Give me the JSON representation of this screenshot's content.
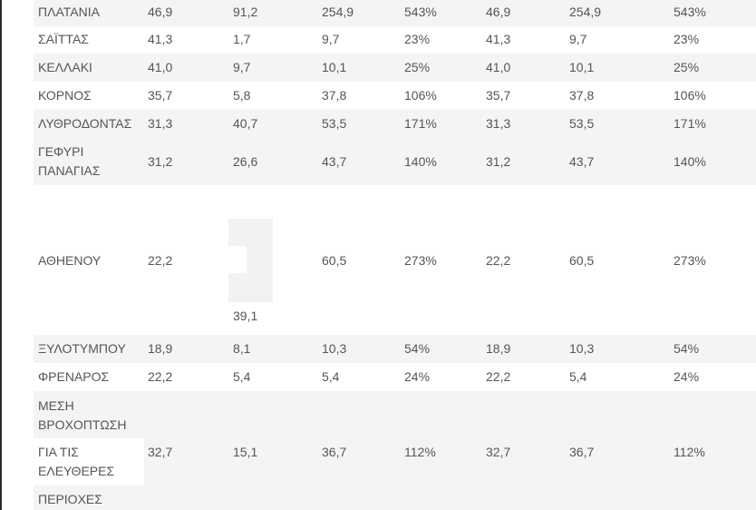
{
  "table": {
    "rows": [
      {
        "name": "ΠΛΑΤΑΝΙΑ",
        "v1": "46,9",
        "v2": "91,2",
        "v3": "254,9",
        "p1": "543%",
        "v4": "46,9",
        "v5": "254,9",
        "p2": "543%"
      },
      {
        "name": "ΣΑΪΤΤΑΣ",
        "v1": "41,3",
        "v2": "1,7",
        "v3": "9,7",
        "p1": "23%",
        "v4": "41,3",
        "v5": "9,7",
        "p2": "23%"
      },
      {
        "name": "ΚΕΛΛΑΚΙ",
        "v1": "41,0",
        "v2": "9,7",
        "v3": "10,1",
        "p1": "25%",
        "v4": "41,0",
        "v5": "10,1",
        "p2": "25%"
      },
      {
        "name": "ΚΟΡΝΟΣ",
        "v1": "35,7",
        "v2": "5,8",
        "v3": "37,8",
        "p1": "106%",
        "v4": "35,7",
        "v5": "37,8",
        "p2": "106%"
      },
      {
        "name": "ΛΥΘΡΟΔΟΝΤΑΣ",
        "v1": "31,3",
        "v2": "40,7",
        "v3": "53,5",
        "p1": "171%",
        "v4": "31,3",
        "v5": "53,5",
        "p2": "171%"
      },
      {
        "name_line1": "ΓΕΦΥΡΙ",
        "name_line2": "ΠΑΝΑΓΙΑΣ",
        "v1": "31,2",
        "v2": "26,6",
        "v3": "43,7",
        "p1": "140%",
        "v4": "31,2",
        "v5": "43,7",
        "p2": "140%"
      },
      {
        "name": "ΑΘΗΕΝΟΥ",
        "v1": "22,2",
        "v2": "39,1",
        "v3": "60,5",
        "p1": "273%",
        "v4": "22,2",
        "v5": "60,5",
        "p2": "273%"
      },
      {
        "name": "ΞΥΛΟΤΥΜΠΟΥ",
        "v1": "18,9",
        "v2": "8,1",
        "v3": "10,3",
        "p1": "54%",
        "v4": "18,9",
        "v5": "10,3",
        "p2": "54%"
      },
      {
        "name": "ΦΡΕΝΑΡΟΣ",
        "v1": "22,2",
        "v2": "5,4",
        "v3": "5,4",
        "p1": "24%",
        "v4": "22,2",
        "v5": "5,4",
        "p2": "24%"
      },
      {
        "name_line1": "ΜΕΣΗ",
        "name_line2": "ΒΡΟΧΟΠΤΩΣΗ",
        "name_line3": "ΓΙΑ ΤΙΣ",
        "name_line4": "ΕΛΕΥΘΕΡΕΣ",
        "name_line5": "ΠΕΡΙΟΧΕΣ",
        "v1": "32,7",
        "v2": "15,1",
        "v3": "36,7",
        "p1": "112%",
        "v4": "32,7",
        "v5": "36,7",
        "p2": "112%"
      }
    ]
  }
}
